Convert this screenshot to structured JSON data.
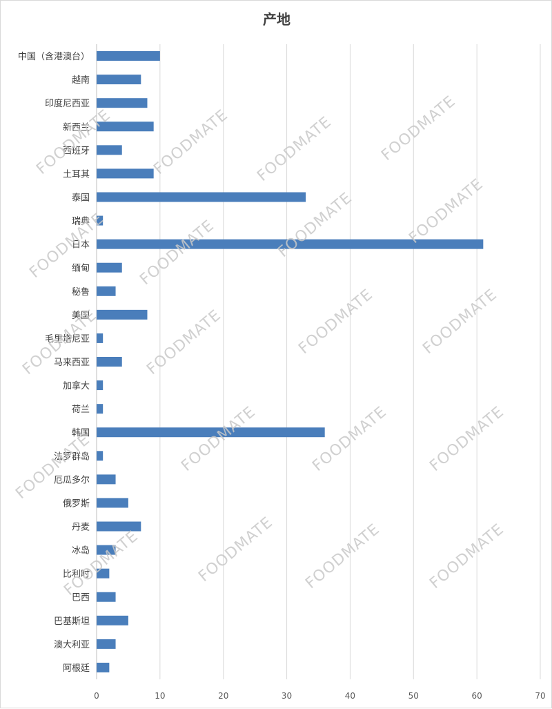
{
  "chart_data": {
    "type": "bar",
    "orientation": "horizontal",
    "title": "产地",
    "categories": [
      "中国（含港澳台）",
      "越南",
      "印度尼西亚",
      "新西兰",
      "西班牙",
      "土耳其",
      "泰国",
      "瑞典",
      "日本",
      "缅甸",
      "秘鲁",
      "美国",
      "毛里塔尼亚",
      "马来西亚",
      "加拿大",
      "荷兰",
      "韩国",
      "法罗群岛",
      "厄瓜多尔",
      "俄罗斯",
      "丹麦",
      "冰岛",
      "比利时",
      "巴西",
      "巴基斯坦",
      "澳大利亚",
      "阿根廷"
    ],
    "values": [
      10,
      7,
      8,
      9,
      4,
      9,
      33,
      1,
      61,
      4,
      3,
      8,
      1,
      4,
      1,
      1,
      36,
      1,
      3,
      5,
      7,
      3,
      2,
      3,
      5,
      3,
      2
    ],
    "xlim": [
      0,
      70
    ],
    "xticks": [
      "0",
      "10",
      "20",
      "30",
      "40",
      "50",
      "60",
      "70"
    ],
    "xlabel": "",
    "ylabel": "",
    "grid": true,
    "bar_color": "#4a7ebb"
  },
  "watermark": {
    "text": "FOODMATE"
  }
}
